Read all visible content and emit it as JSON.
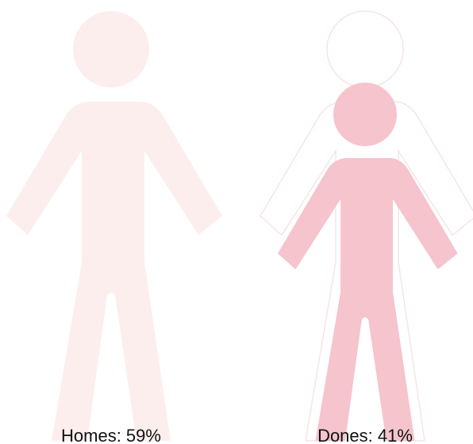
{
  "chart_data": {
    "type": "pictograph",
    "values": [
      59,
      41
    ],
    "value_labels": [
      "Homes: 59%",
      "Dones: 41%"
    ],
    "colors": [
      "#fdeeee",
      "#f5c4cd"
    ],
    "outline_color": "#f3e6e6"
  }
}
